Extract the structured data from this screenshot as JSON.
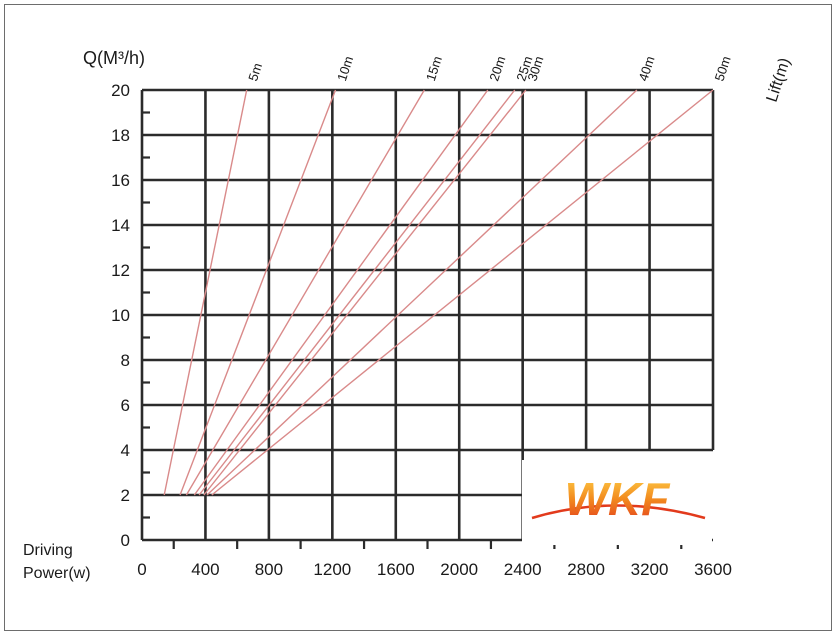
{
  "chart_data": {
    "type": "line",
    "y_axis_title": "Q(M³/h)",
    "x_axis_title_line1": "Driving",
    "x_axis_title_line2": "Power(w)",
    "lift_axis_title": "Lift(m)",
    "xlim": [
      0,
      3600
    ],
    "ylim": [
      0,
      20
    ],
    "x_ticks": [
      "0",
      "400",
      "800",
      "1200",
      "1600",
      "2000",
      "2400",
      "2800",
      "3200",
      "3600"
    ],
    "y_ticks": [
      "0",
      "2",
      "4",
      "6",
      "8",
      "10",
      "12",
      "14",
      "16",
      "18",
      "20"
    ],
    "grid": true,
    "series": [
      {
        "name": "5m",
        "x": [
          140,
          660
        ],
        "y": [
          2,
          20
        ]
      },
      {
        "name": "10m",
        "x": [
          240,
          1220
        ],
        "y": [
          2,
          20
        ]
      },
      {
        "name": "15m",
        "x": [
          280,
          1780
        ],
        "y": [
          2,
          20
        ]
      },
      {
        "name": "20m",
        "x": [
          330,
          2180
        ],
        "y": [
          2,
          20
        ]
      },
      {
        "name": "25m",
        "x": [
          360,
          2350
        ],
        "y": [
          2,
          20
        ]
      },
      {
        "name": "30m",
        "x": [
          390,
          2420
        ],
        "y": [
          2,
          20
        ]
      },
      {
        "name": "40m",
        "x": [
          410,
          3120
        ],
        "y": [
          2,
          20
        ]
      },
      {
        "name": "50m",
        "x": [
          440,
          3600
        ],
        "y": [
          2,
          20
        ]
      }
    ]
  },
  "logo": {
    "text": "WKF"
  },
  "colors": {
    "grid": "#2b2b2b",
    "lift_lines": "#d98a8a",
    "logo_orange": "#f28a1e",
    "logo_red": "#e23a1c"
  }
}
